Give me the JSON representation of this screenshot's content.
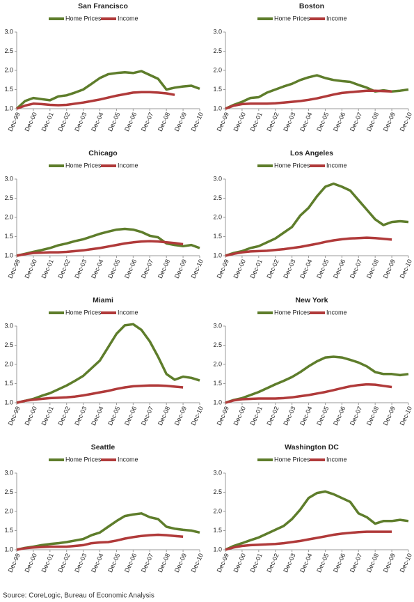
{
  "chart_data": [
    {
      "type": "line",
      "title": "San Francisco",
      "categories": [
        "Dec-99",
        null,
        "Dec-00",
        null,
        "Dec-01",
        null,
        "Dec-02",
        null,
        "Dec-03",
        null,
        "Dec-04",
        null,
        "Dec-05",
        null,
        "Dec-06",
        null,
        "Dec-07",
        null,
        "Dec-08",
        null,
        "Dec-09",
        null,
        "Dec-10"
      ],
      "series": [
        {
          "name": "Home Prices",
          "color": "#5e7d2b",
          "values": [
            1.0,
            1.2,
            1.28,
            1.25,
            1.22,
            1.32,
            1.35,
            1.42,
            1.5,
            1.65,
            1.8,
            1.9,
            1.93,
            1.95,
            1.93,
            1.98,
            1.88,
            1.78,
            1.5,
            1.55,
            1.58,
            1.6,
            1.52
          ]
        },
        {
          "name": "Income",
          "color": "#b03a3a",
          "values": [
            1.0,
            1.08,
            1.13,
            1.12,
            1.1,
            1.09,
            1.1,
            1.13,
            1.16,
            1.2,
            1.24,
            1.29,
            1.34,
            1.38,
            1.42,
            1.43,
            1.43,
            1.42,
            1.4,
            1.36,
            null,
            null,
            null
          ]
        }
      ],
      "ylim": [
        1,
        3
      ],
      "yticks": [
        {
          "value": 1,
          "label": "1.0"
        },
        {
          "value": 1.5,
          "label": "1.5"
        },
        {
          "value": 2,
          "label": "2.0"
        },
        {
          "value": 2.5,
          "label": "2.5"
        },
        {
          "value": 3,
          "label": "3.0"
        }
      ]
    },
    {
      "type": "line",
      "title": "Boston",
      "categories": [
        "Dec-99",
        null,
        "Dec-00",
        null,
        "Dec-01",
        null,
        "Dec-02",
        null,
        "Dec-03",
        null,
        "Dec-04",
        null,
        "Dec-05",
        null,
        "Dec-06",
        null,
        "Dec-07",
        null,
        "Dec-08",
        null,
        "Dec-09",
        null,
        "Dec-10"
      ],
      "series": [
        {
          "name": "Home Prices",
          "color": "#5e7d2b",
          "values": [
            1.0,
            1.1,
            1.18,
            1.28,
            1.3,
            1.42,
            1.5,
            1.58,
            1.65,
            1.75,
            1.82,
            1.87,
            1.8,
            1.75,
            1.72,
            1.7,
            1.62,
            1.55,
            1.45,
            1.48,
            1.45,
            1.47,
            1.5
          ]
        },
        {
          "name": "Income",
          "color": "#b03a3a",
          "values": [
            1.0,
            1.08,
            1.12,
            1.13,
            1.13,
            1.13,
            1.14,
            1.16,
            1.18,
            1.2,
            1.23,
            1.27,
            1.32,
            1.37,
            1.41,
            1.43,
            1.45,
            1.47,
            1.47,
            1.46,
            1.45,
            null,
            null
          ]
        }
      ],
      "ylim": [
        1,
        3
      ],
      "yticks": [
        {
          "value": 1,
          "label": "1.0"
        },
        {
          "value": 1.5,
          "label": "1.5"
        },
        {
          "value": 2,
          "label": "2.0"
        },
        {
          "value": 2.5,
          "label": "2.5"
        },
        {
          "value": 3,
          "label": "3.0"
        }
      ]
    },
    {
      "type": "line",
      "title": "Chicago",
      "categories": [
        "Dec-99",
        null,
        "Dec-00",
        null,
        "Dec-01",
        null,
        "Dec-02",
        null,
        "Dec-03",
        null,
        "Dec-04",
        null,
        "Dec-05",
        null,
        "Dec-06",
        null,
        "Dec-07",
        null,
        "Dec-08",
        null,
        "Dec-09",
        null,
        "Dec-10"
      ],
      "series": [
        {
          "name": "Home Prices",
          "color": "#5e7d2b",
          "values": [
            1.0,
            1.05,
            1.1,
            1.15,
            1.2,
            1.27,
            1.32,
            1.38,
            1.43,
            1.5,
            1.57,
            1.63,
            1.68,
            1.7,
            1.68,
            1.62,
            1.52,
            1.48,
            1.32,
            1.28,
            1.25,
            1.28,
            1.2
          ]
        },
        {
          "name": "Income",
          "color": "#b03a3a",
          "values": [
            1.0,
            1.04,
            1.07,
            1.08,
            1.09,
            1.09,
            1.1,
            1.12,
            1.14,
            1.17,
            1.2,
            1.24,
            1.28,
            1.32,
            1.35,
            1.37,
            1.38,
            1.37,
            1.35,
            1.33,
            1.3,
            null,
            null
          ]
        }
      ],
      "ylim": [
        1,
        3
      ],
      "yticks": [
        {
          "value": 1,
          "label": "1.0"
        },
        {
          "value": 1.5,
          "label": "1.5"
        },
        {
          "value": 2,
          "label": "2.0"
        },
        {
          "value": 2.5,
          "label": "2.5"
        },
        {
          "value": 3,
          "label": "3.0"
        }
      ]
    },
    {
      "type": "line",
      "title": "Los Angeles",
      "categories": [
        "Dec-99",
        null,
        "Dec-00",
        null,
        "Dec-01",
        null,
        "Dec-02",
        null,
        "Dec-03",
        null,
        "Dec-04",
        null,
        "Dec-05",
        null,
        "Dec-06",
        null,
        "Dec-07",
        null,
        "Dec-08",
        null,
        "Dec-09",
        null,
        "Dec-10"
      ],
      "series": [
        {
          "name": "Home Prices",
          "color": "#5e7d2b",
          "values": [
            1.0,
            1.07,
            1.12,
            1.2,
            1.25,
            1.35,
            1.45,
            1.6,
            1.75,
            2.05,
            2.25,
            2.55,
            2.8,
            2.88,
            2.8,
            2.7,
            2.45,
            2.2,
            1.95,
            1.8,
            1.88,
            1.9,
            1.88
          ]
        },
        {
          "name": "Income",
          "color": "#b03a3a",
          "values": [
            1.0,
            1.05,
            1.09,
            1.11,
            1.12,
            1.13,
            1.15,
            1.17,
            1.2,
            1.23,
            1.27,
            1.31,
            1.36,
            1.4,
            1.43,
            1.45,
            1.46,
            1.47,
            1.46,
            1.44,
            1.42,
            null,
            null
          ]
        }
      ],
      "ylim": [
        1,
        3
      ],
      "yticks": [
        {
          "value": 1,
          "label": "1.0"
        },
        {
          "value": 1.5,
          "label": "1.5"
        },
        {
          "value": 2,
          "label": "2.0"
        },
        {
          "value": 2.5,
          "label": "2.5"
        },
        {
          "value": 3,
          "label": "3.0"
        }
      ]
    },
    {
      "type": "line",
      "title": "Miami",
      "categories": [
        "Dec-99",
        null,
        "Dec-00",
        null,
        "Dec-01",
        null,
        "Dec-02",
        null,
        "Dec-03",
        null,
        "Dec-04",
        null,
        "Dec-05",
        null,
        "Dec-06",
        null,
        "Dec-07",
        null,
        "Dec-08",
        null,
        "Dec-09",
        null,
        "Dec-10"
      ],
      "series": [
        {
          "name": "Home Prices",
          "color": "#5e7d2b",
          "values": [
            1.0,
            1.05,
            1.1,
            1.18,
            1.25,
            1.35,
            1.45,
            1.57,
            1.7,
            1.9,
            2.1,
            2.45,
            2.8,
            3.02,
            3.05,
            2.9,
            2.6,
            2.2,
            1.75,
            1.6,
            1.68,
            1.65,
            1.58
          ]
        },
        {
          "name": "Income",
          "color": "#b03a3a",
          "values": [
            1.0,
            1.05,
            1.08,
            1.1,
            1.12,
            1.13,
            1.14,
            1.16,
            1.19,
            1.23,
            1.27,
            1.31,
            1.36,
            1.4,
            1.43,
            1.44,
            1.45,
            1.45,
            1.44,
            1.42,
            1.4,
            null,
            null
          ]
        }
      ],
      "ylim": [
        1,
        3
      ],
      "yticks": [
        {
          "value": 1,
          "label": "1.0"
        },
        {
          "value": 1.5,
          "label": "1.5"
        },
        {
          "value": 2,
          "label": "2.0"
        },
        {
          "value": 2.5,
          "label": "2.5"
        },
        {
          "value": 3,
          "label": "3.0"
        }
      ]
    },
    {
      "type": "line",
      "title": "New York",
      "categories": [
        "Dec-99",
        null,
        "Dec-00",
        null,
        "Dec-01",
        null,
        "Dec-02",
        null,
        "Dec-03",
        null,
        "Dec-04",
        null,
        "Dec-05",
        null,
        "Dec-06",
        null,
        "Dec-07",
        null,
        "Dec-08",
        null,
        "Dec-09",
        null,
        "Dec-10"
      ],
      "series": [
        {
          "name": "Home Prices",
          "color": "#5e7d2b",
          "values": [
            1.0,
            1.07,
            1.12,
            1.2,
            1.28,
            1.38,
            1.48,
            1.57,
            1.67,
            1.8,
            1.95,
            2.08,
            2.18,
            2.2,
            2.18,
            2.12,
            2.05,
            1.95,
            1.8,
            1.75,
            1.75,
            1.72,
            1.75
          ]
        },
        {
          "name": "Income",
          "color": "#b03a3a",
          "values": [
            1.0,
            1.06,
            1.09,
            1.1,
            1.11,
            1.11,
            1.11,
            1.12,
            1.14,
            1.17,
            1.2,
            1.24,
            1.28,
            1.33,
            1.38,
            1.43,
            1.46,
            1.48,
            1.47,
            1.44,
            1.41,
            null,
            null
          ]
        }
      ],
      "ylim": [
        1,
        3
      ],
      "yticks": [
        {
          "value": 1,
          "label": "1.0"
        },
        {
          "value": 1.5,
          "label": "1.5"
        },
        {
          "value": 2,
          "label": "2.0"
        },
        {
          "value": 2.5,
          "label": "2.5"
        },
        {
          "value": 3,
          "label": "3.0"
        }
      ]
    },
    {
      "type": "line",
      "title": "Seattle",
      "categories": [
        "Dec-99",
        null,
        "Dec-00",
        null,
        "Dec-01",
        null,
        "Dec-02",
        null,
        "Dec-03",
        null,
        "Dec-04",
        null,
        "Dec-05",
        null,
        "Dec-06",
        null,
        "Dec-07",
        null,
        "Dec-08",
        null,
        "Dec-09",
        null,
        "Dec-10"
      ],
      "series": [
        {
          "name": "Home Prices",
          "color": "#5e7d2b",
          "values": [
            1.0,
            1.05,
            1.08,
            1.12,
            1.15,
            1.17,
            1.2,
            1.24,
            1.28,
            1.38,
            1.45,
            1.6,
            1.75,
            1.88,
            1.92,
            1.95,
            1.85,
            1.8,
            1.6,
            1.55,
            1.52,
            1.5,
            1.45
          ]
        },
        {
          "name": "Income",
          "color": "#b03a3a",
          "values": [
            1.0,
            1.04,
            1.06,
            1.07,
            1.08,
            1.08,
            1.08,
            1.1,
            1.12,
            1.17,
            1.19,
            1.2,
            1.24,
            1.29,
            1.33,
            1.36,
            1.38,
            1.39,
            1.38,
            1.36,
            1.34,
            null,
            null
          ]
        }
      ],
      "ylim": [
        1,
        3
      ],
      "yticks": [
        {
          "value": 1,
          "label": "1.0"
        },
        {
          "value": 1.5,
          "label": "1.5"
        },
        {
          "value": 2,
          "label": "2.0"
        },
        {
          "value": 2.5,
          "label": "2.5"
        },
        {
          "value": 3,
          "label": "3.0"
        }
      ]
    },
    {
      "type": "line",
      "title": "Washington DC",
      "categories": [
        "Dec-99",
        null,
        "Dec-00",
        null,
        "Dec-01",
        null,
        "Dec-02",
        null,
        "Dec-03",
        null,
        "Dec-04",
        null,
        "Dec-05",
        null,
        "Dec-06",
        null,
        "Dec-07",
        null,
        "Dec-08",
        null,
        "Dec-09",
        null,
        "Dec-10"
      ],
      "series": [
        {
          "name": "Home Prices",
          "color": "#5e7d2b",
          "values": [
            1.0,
            1.1,
            1.17,
            1.25,
            1.32,
            1.42,
            1.52,
            1.62,
            1.8,
            2.05,
            2.35,
            2.48,
            2.52,
            2.45,
            2.35,
            2.25,
            1.95,
            1.85,
            1.68,
            1.75,
            1.75,
            1.78,
            1.75
          ]
        },
        {
          "name": "Income",
          "color": "#b03a3a",
          "values": [
            1.0,
            1.06,
            1.1,
            1.12,
            1.13,
            1.14,
            1.15,
            1.17,
            1.2,
            1.23,
            1.27,
            1.31,
            1.35,
            1.39,
            1.42,
            1.44,
            1.46,
            1.47,
            1.47,
            1.47,
            1.47,
            null,
            null
          ]
        }
      ],
      "ylim": [
        1,
        3
      ],
      "yticks": [
        {
          "value": 1,
          "label": "1.0"
        },
        {
          "value": 1.5,
          "label": "1.5"
        },
        {
          "value": 2,
          "label": "2.0"
        },
        {
          "value": 2.5,
          "label": "2.5"
        },
        {
          "value": 3,
          "label": "3.0"
        }
      ]
    }
  ],
  "source": "Source: CoreLogic, Bureau of Economic Analysis"
}
